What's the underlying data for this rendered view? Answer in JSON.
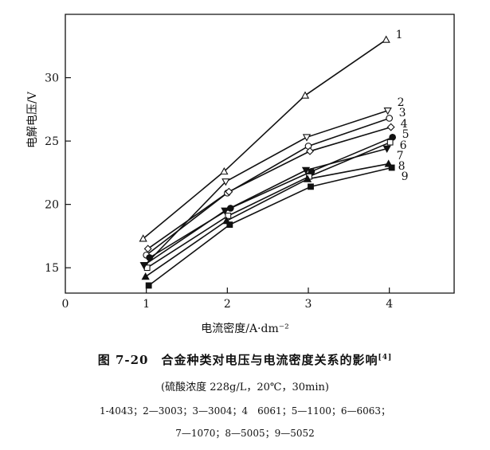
{
  "chart_data": {
    "type": "line",
    "xlabel": "电流密度/A·dm⁻²",
    "ylabel": "电解电压/V",
    "xlim": [
      0,
      4.8
    ],
    "ylim": [
      13,
      35
    ],
    "xticks": [
      "0",
      "1",
      "2",
      "3",
      "4"
    ],
    "yticks": [
      "15",
      "20",
      "25",
      "30"
    ],
    "x": [
      1,
      2,
      3,
      4
    ],
    "series": [
      {
        "name": "1",
        "marker": "triangle-up-open",
        "values": [
          17.3,
          22.6,
          28.6,
          33.0
        ]
      },
      {
        "name": "2",
        "marker": "triangle-down-open",
        "values": [
          15.2,
          21.8,
          25.3,
          27.4
        ]
      },
      {
        "name": "3",
        "marker": "circle-open",
        "values": [
          16.0,
          20.9,
          24.6,
          26.8
        ]
      },
      {
        "name": "4",
        "marker": "diamond-open",
        "values": [
          16.5,
          21.0,
          24.2,
          26.1
        ]
      },
      {
        "name": "5",
        "marker": "circle-filled",
        "values": [
          15.8,
          19.7,
          22.6,
          25.3
        ]
      },
      {
        "name": "6",
        "marker": "square-open",
        "values": [
          15.0,
          19.1,
          22.2,
          24.9
        ]
      },
      {
        "name": "7",
        "marker": "triangle-down-filled",
        "values": [
          15.2,
          19.5,
          22.7,
          24.4
        ]
      },
      {
        "name": "8",
        "marker": "triangle-up-filled",
        "values": [
          14.3,
          18.7,
          22.0,
          23.2
        ]
      },
      {
        "name": "9",
        "marker": "square-filled",
        "values": [
          13.6,
          18.4,
          21.4,
          22.9
        ]
      }
    ],
    "grid": false
  },
  "caption": {
    "title": "图 7-20　合金种类对电压与电流密度关系的影响",
    "ref": "[4]",
    "conditions": "(硫酸浓度 228g/L，20℃，30min)",
    "legend_line1": "1-4043；2—3003；3—3004；4　6061；5—1100；6—6063；",
    "legend_line2": "7—1070；8—5005；9—5052"
  }
}
